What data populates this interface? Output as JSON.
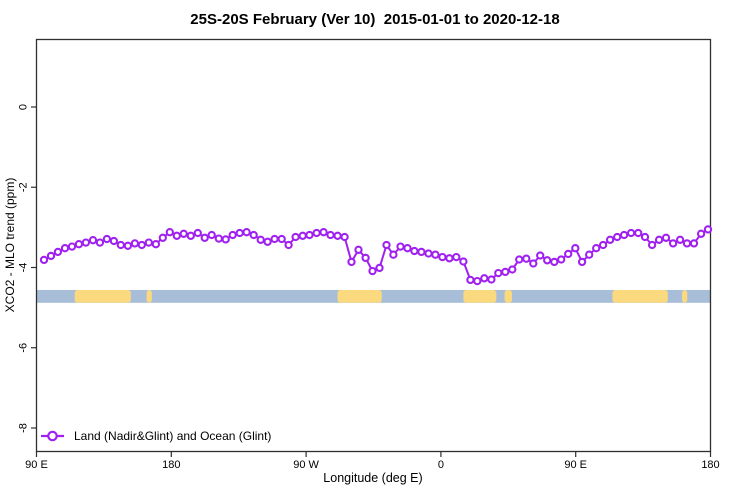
{
  "title": "25S-20S February (Ver 10)  2015-01-01 to 2020-12-18",
  "y_axis": {
    "label": "XCO2 - MLO trend (ppm)",
    "ticks": [
      0,
      -2,
      -4,
      -6,
      -8
    ],
    "tick_labels": [
      "0",
      "-2",
      "-4",
      "-6",
      "-8"
    ]
  },
  "x_axis": {
    "label": "Longitude (deg E)",
    "ticks": [
      {
        "lon": 90,
        "label": "90 E"
      },
      {
        "lon": 180,
        "label": "180"
      },
      {
        "lon": 270,
        "label": "90 W"
      },
      {
        "lon": 360,
        "label": "0"
      },
      {
        "lon": 450,
        "label": "90 E"
      },
      {
        "lon": 540,
        "label": "180"
      }
    ]
  },
  "legend": {
    "label": "Land (Nadir&Glint) and Ocean (Glint)"
  },
  "colors": {
    "series": "#a020f0",
    "ocean_band": "#a8bdd8",
    "land_band": "#fbd97e",
    "axis": "#2f2f2f",
    "text": "#000000",
    "background": "#ffffff"
  },
  "chart_data": {
    "type": "line",
    "title": "25S-20S February (Ver 10)  2015-01-01 to 2020-12-18",
    "xlabel": "Longitude (deg E)",
    "ylabel": "XCO2 - MLO trend (ppm)",
    "x_range_deg_e": [
      90,
      540
    ],
    "y_range": [
      -8.6,
      1.7
    ],
    "grid": false,
    "legend_position": "bottom-left-inside",
    "series": [
      {
        "name": "Land (Nadir&Glint) and Ocean (Glint)",
        "color": "#a020f0",
        "marker": "open-circle",
        "points": [
          [
            95.0,
            -3.81
          ],
          [
            99.7,
            -3.71
          ],
          [
            104.3,
            -3.61
          ],
          [
            109.0,
            -3.52
          ],
          [
            113.7,
            -3.48
          ],
          [
            118.3,
            -3.42
          ],
          [
            123.0,
            -3.38
          ],
          [
            127.7,
            -3.32
          ],
          [
            132.3,
            -3.38
          ],
          [
            137.0,
            -3.29
          ],
          [
            141.7,
            -3.34
          ],
          [
            146.3,
            -3.44
          ],
          [
            151.0,
            -3.46
          ],
          [
            155.7,
            -3.4
          ],
          [
            160.3,
            -3.44
          ],
          [
            165.0,
            -3.38
          ],
          [
            169.7,
            -3.42
          ],
          [
            174.3,
            -3.26
          ],
          [
            179.0,
            -3.12
          ],
          [
            183.7,
            -3.21
          ],
          [
            188.3,
            -3.16
          ],
          [
            193.0,
            -3.21
          ],
          [
            197.7,
            -3.14
          ],
          [
            202.3,
            -3.26
          ],
          [
            207.0,
            -3.19
          ],
          [
            211.7,
            -3.28
          ],
          [
            216.3,
            -3.3
          ],
          [
            221.0,
            -3.19
          ],
          [
            225.7,
            -3.14
          ],
          [
            230.3,
            -3.12
          ],
          [
            235.0,
            -3.19
          ],
          [
            239.7,
            -3.31
          ],
          [
            244.3,
            -3.36
          ],
          [
            249.0,
            -3.29
          ],
          [
            253.7,
            -3.29
          ],
          [
            258.3,
            -3.44
          ],
          [
            263.0,
            -3.24
          ],
          [
            267.7,
            -3.21
          ],
          [
            272.3,
            -3.19
          ],
          [
            277.0,
            -3.14
          ],
          [
            281.7,
            -3.12
          ],
          [
            286.3,
            -3.19
          ],
          [
            291.0,
            -3.21
          ],
          [
            295.7,
            -3.24
          ],
          [
            300.3,
            -3.86
          ],
          [
            305.0,
            -3.56
          ],
          [
            309.7,
            -3.76
          ],
          [
            314.3,
            -4.09
          ],
          [
            319.0,
            -4.01
          ],
          [
            323.7,
            -3.44
          ],
          [
            328.3,
            -3.68
          ],
          [
            333.0,
            -3.48
          ],
          [
            337.7,
            -3.52
          ],
          [
            342.3,
            -3.59
          ],
          [
            347.0,
            -3.61
          ],
          [
            351.7,
            -3.65
          ],
          [
            356.3,
            -3.68
          ],
          [
            361.0,
            -3.74
          ],
          [
            365.7,
            -3.77
          ],
          [
            370.3,
            -3.74
          ],
          [
            375.0,
            -3.85
          ],
          [
            379.7,
            -4.31
          ],
          [
            384.3,
            -4.34
          ],
          [
            389.0,
            -4.27
          ],
          [
            393.7,
            -4.3
          ],
          [
            398.3,
            -4.14
          ],
          [
            403.0,
            -4.11
          ],
          [
            407.7,
            -4.05
          ],
          [
            412.3,
            -3.8
          ],
          [
            417.0,
            -3.78
          ],
          [
            421.7,
            -3.9
          ],
          [
            426.3,
            -3.7
          ],
          [
            431.0,
            -3.82
          ],
          [
            435.7,
            -3.86
          ],
          [
            440.3,
            -3.8
          ],
          [
            445.0,
            -3.66
          ],
          [
            449.7,
            -3.52
          ],
          [
            454.3,
            -3.86
          ],
          [
            459.0,
            -3.68
          ],
          [
            463.7,
            -3.52
          ],
          [
            468.3,
            -3.44
          ],
          [
            473.0,
            -3.31
          ],
          [
            477.7,
            -3.24
          ],
          [
            482.3,
            -3.19
          ],
          [
            487.0,
            -3.14
          ],
          [
            491.7,
            -3.14
          ],
          [
            496.3,
            -3.24
          ],
          [
            501.0,
            -3.44
          ],
          [
            505.7,
            -3.31
          ],
          [
            510.3,
            -3.26
          ],
          [
            515.0,
            -3.4
          ],
          [
            519.7,
            -3.31
          ],
          [
            524.3,
            -3.4
          ],
          [
            529.0,
            -3.4
          ],
          [
            533.7,
            -3.16
          ],
          [
            538.3,
            -3.05
          ]
        ]
      }
    ],
    "surface_band": {
      "description": "ocean/land strip along longitude",
      "y_top": -4.56,
      "y_bottom": -4.88,
      "ocean_color": "#a8bdd8",
      "land_color": "#fbd97e",
      "ocean_range_deg_e": [
        90,
        540
      ],
      "land_segments_deg_e": [
        [
          115.5,
          153.0
        ],
        [
          163.5,
          167.0
        ],
        [
          291.0,
          320.5
        ],
        [
          375.0,
          397.0
        ],
        [
          402.5,
          407.5
        ],
        [
          474.5,
          511.5
        ],
        [
          521.0,
          524.5
        ]
      ]
    }
  }
}
